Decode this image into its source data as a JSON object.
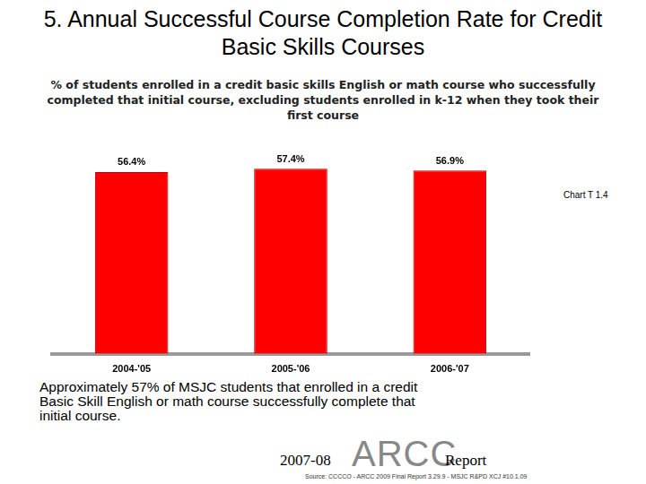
{
  "chart_data": {
    "type": "bar",
    "title": "5. Annual Successful Course Completion Rate for Credit Basic Skills Courses",
    "subtitle": "% of students enrolled in a credit basic skills English or math course who successfully completed that initial course, excluding students enrolled in k-12 when they took their first course",
    "annotations": [
      "Chart T 1.4",
      "Approximately 57% of MSJC students that enrolled in a credit Basic Skill English or math course successfully complete that initial course.",
      "2007-08",
      "ARCC",
      "Report",
      "Source: CCCCO - ARCC 2009 Final Report 3.29.9 - MSJC R&PD XCJ #10.1.09"
    ],
    "categories": [
      "2004-'05",
      "2005-'06",
      "2006-'07"
    ],
    "values": [
      56.4,
      57.4,
      56.9
    ],
    "value_labels": [
      "56.4%",
      "57.4%",
      "56.9%"
    ],
    "color": "#ff0000",
    "ylim": [
      0,
      60
    ],
    "yticks": [
      0,
      60
    ],
    "grid": false,
    "data_labels": true,
    "tick_labels": "x"
  }
}
